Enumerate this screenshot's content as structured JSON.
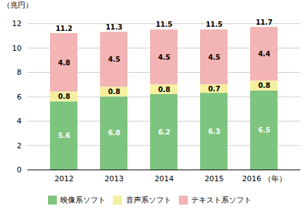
{
  "chart_data": {
    "type": "bar",
    "stacked": true,
    "ylabel": "（兆円）",
    "categories": [
      "2012",
      "2013",
      "2014",
      "2015",
      "2016 （年）"
    ],
    "series": [
      {
        "name": "映像系ソフト",
        "color": "#7dc47e",
        "values": [
          5.6,
          6.0,
          6.2,
          6.3,
          6.5
        ],
        "value_labels": [
          "5.6",
          "6.0",
          "6.2",
          "6.3",
          "6.5"
        ]
      },
      {
        "name": "音声系ソフト",
        "color": "#f5f0a0",
        "values": [
          0.8,
          0.8,
          0.8,
          0.7,
          0.8
        ],
        "value_labels": [
          "0.8",
          "0.8",
          "0.8",
          "0.7",
          "0.8"
        ]
      },
      {
        "name": "テキスト系ソフト",
        "color": "#f2b4b4",
        "values": [
          4.8,
          4.5,
          4.5,
          4.5,
          4.4
        ],
        "value_labels": [
          "4.8",
          "4.5",
          "4.5",
          "4.5",
          "4.4"
        ]
      }
    ],
    "totals": [
      11.2,
      11.3,
      11.5,
      11.5,
      11.7
    ],
    "ylim": [
      0,
      12
    ],
    "yticks": [
      0,
      2,
      4,
      6,
      8,
      10,
      12
    ],
    "grid": true,
    "data_labels": true,
    "legend": "bottom"
  }
}
